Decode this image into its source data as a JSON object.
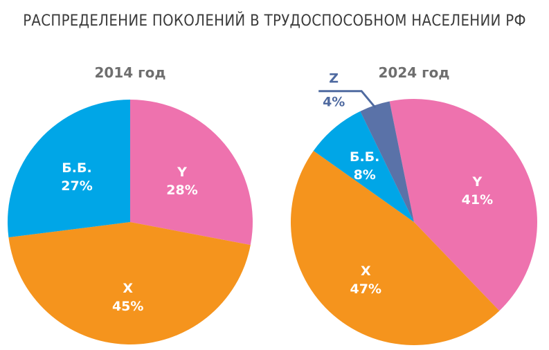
{
  "title": "РАСПРЕДЕЛЕНИЕ ПОКОЛЕНИЙ В ТРУДОСПОСОБНОМ НАСЕЛЕНИИ РФ",
  "chart_data": [
    {
      "type": "pie",
      "title": "2014 год",
      "slices": [
        {
          "name": "Y",
          "value": 28,
          "value_label": "28%",
          "color": "#ee72ae"
        },
        {
          "name": "X",
          "value": 45,
          "value_label": "45%",
          "color": "#f5941d"
        },
        {
          "name": "Б.Б.",
          "value": 27,
          "value_label": "27%",
          "color": "#00a6e7"
        }
      ]
    },
    {
      "type": "pie",
      "title": "2024 год",
      "slices": [
        {
          "name": "Y",
          "value": 41,
          "value_label": "41%",
          "color": "#ee72ae"
        },
        {
          "name": "X",
          "value": 47,
          "value_label": "47%",
          "color": "#f5941d"
        },
        {
          "name": "Б.Б.",
          "value": 8,
          "value_label": "8%",
          "color": "#00a6e7"
        },
        {
          "name": "Z",
          "value": 4,
          "value_label": "4%",
          "color": "#5a72a8",
          "callout": true
        }
      ]
    }
  ]
}
